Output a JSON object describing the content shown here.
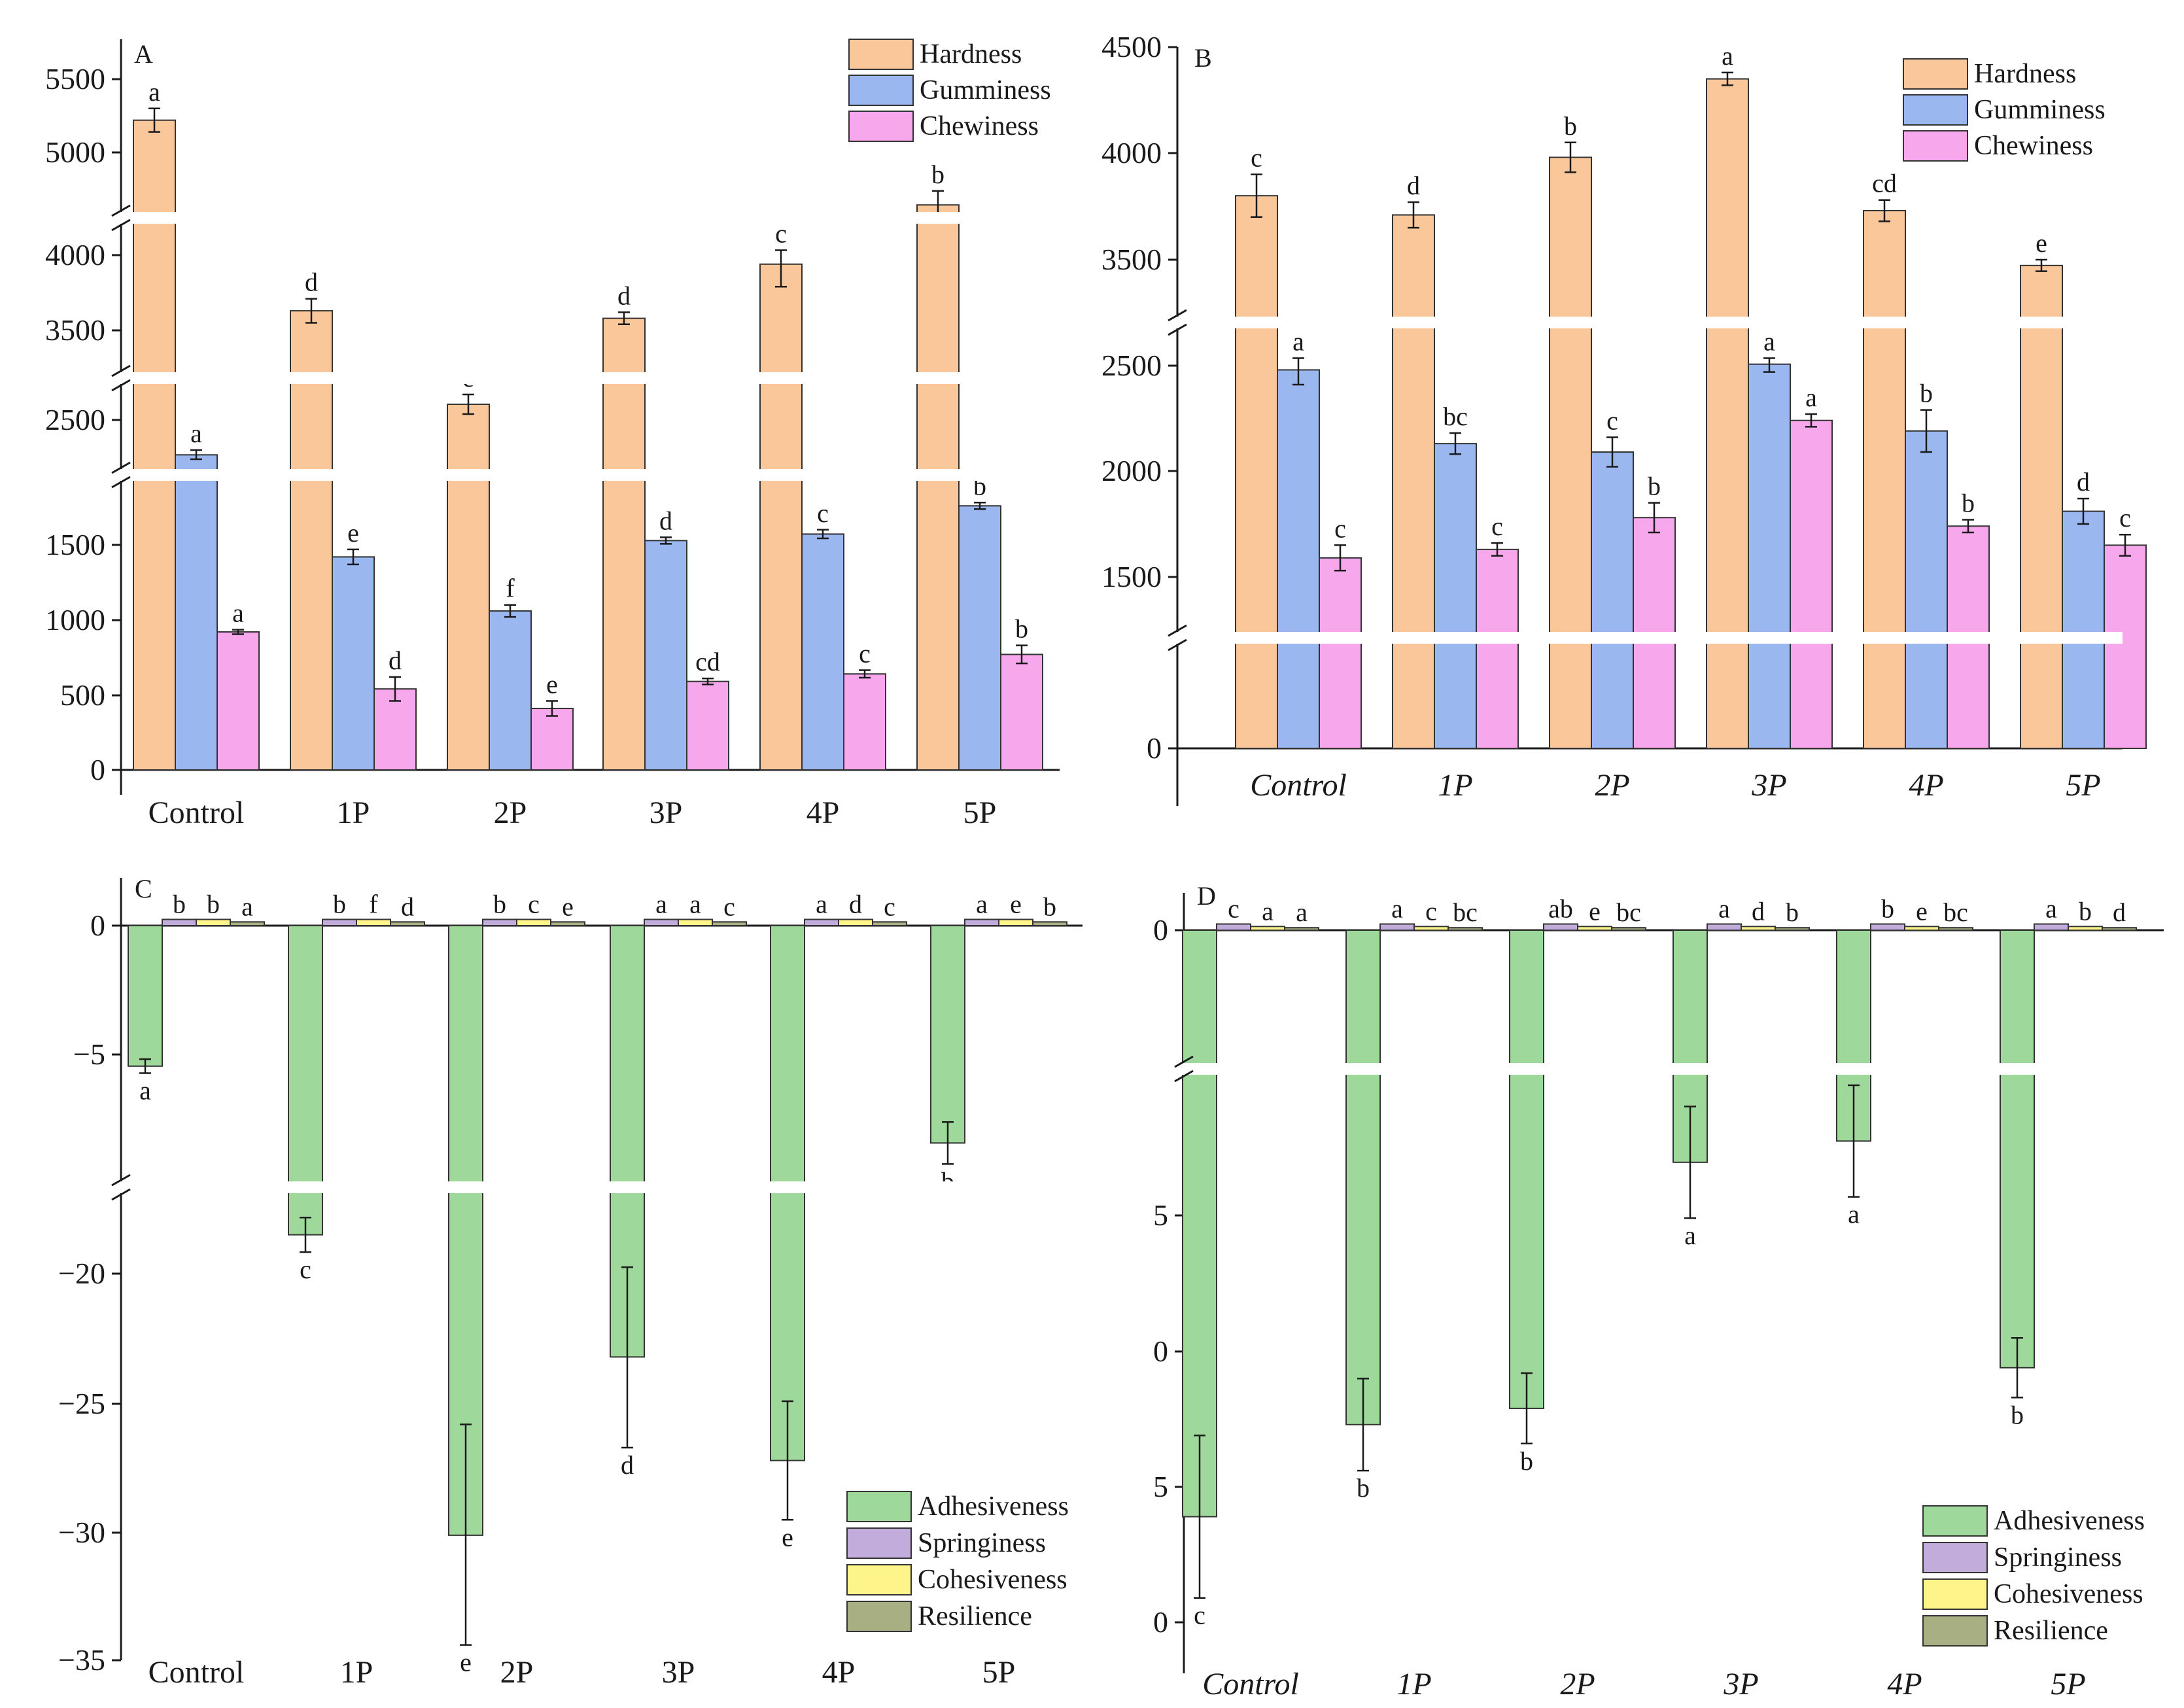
{
  "chart_data": [
    {
      "panel": "A",
      "type": "bar",
      "categories": [
        "Control",
        "1P",
        "2P",
        "3P",
        "4P",
        "5P"
      ],
      "category_style": "normal",
      "y_ticks": [
        0,
        500,
        1000,
        1500,
        2500,
        3500,
        4000,
        5000,
        5500
      ],
      "series": [
        {
          "name": "Hardness",
          "color": "#f9c79a",
          "values": [
            5220,
            3630,
            2580,
            3580,
            3940,
            4700
          ],
          "errors": [
            80,
            80,
            50,
            40,
            150,
            80
          ],
          "letters": [
            "a",
            "d",
            "e",
            "d",
            "c",
            "b"
          ]
        },
        {
          "name": "Gumminess",
          "color": "#9bb7f0",
          "values": [
            2330,
            1420,
            1060,
            1540,
            1600,
            1860
          ],
          "errors": [
            40,
            50,
            40,
            30,
            40,
            30
          ],
          "letters": [
            "a",
            "e",
            "f",
            "d",
            "c",
            "b"
          ]
        },
        {
          "name": "Chewiness",
          "color": "#f7a8ec",
          "values": [
            920,
            540,
            410,
            590,
            640,
            770
          ],
          "errors": [
            15,
            80,
            50,
            20,
            25,
            60
          ],
          "letters": [
            "a",
            "d",
            "e",
            "cd",
            "c",
            "b"
          ]
        }
      ]
    },
    {
      "panel": "B",
      "type": "bar",
      "categories": [
        "Control",
        "1P",
        "2P",
        "3P",
        "4P",
        "5P"
      ],
      "category_style": "italic",
      "y_ticks": [
        0,
        1500,
        2000,
        2500,
        3500,
        4000,
        4500
      ],
      "series": [
        {
          "name": "Hardness",
          "color": "#f9c79a",
          "values": [
            3800,
            3710,
            3980,
            4350,
            3730,
            3450
          ],
          "errors": [
            100,
            60,
            70,
            30,
            50,
            50
          ],
          "letters": [
            "c",
            "d",
            "b",
            "a",
            "cd",
            "e"
          ]
        },
        {
          "name": "Gumminess",
          "color": "#9bb7f0",
          "values": [
            2480,
            2130,
            2090,
            2510,
            2190,
            1810
          ],
          "errors": [
            70,
            50,
            70,
            40,
            100,
            60
          ],
          "letters": [
            "a",
            "bc",
            "c",
            "a",
            "b",
            "d"
          ]
        },
        {
          "name": "Chewiness",
          "color": "#f7a8ec",
          "values": [
            1590,
            1630,
            1780,
            2240,
            1740,
            1650
          ],
          "errors": [
            60,
            30,
            70,
            30,
            30,
            50
          ],
          "letters": [
            "c",
            "c",
            "b",
            "a",
            "b",
            "c"
          ]
        }
      ]
    },
    {
      "panel": "C",
      "type": "bar",
      "categories": [
        "Control",
        "1P",
        "2P",
        "3P",
        "4P",
        "5P"
      ],
      "category_style": "normal",
      "y_ticks": [
        0,
        -5,
        -20,
        -25,
        -30,
        -35
      ],
      "series": [
        {
          "name": "Adhesiveness",
          "color": "#9ed99b",
          "values": [
            -5.5,
            -18.2,
            -30.1,
            -23.2,
            -27.2,
            -8.8
          ],
          "errors": [
            0.3,
            0.8,
            4.3,
            3.5,
            2.3,
            0.9
          ],
          "letters": [
            "a",
            "c",
            "e",
            "d",
            "e",
            "b"
          ]
        },
        {
          "name": "Springiness",
          "color": "#c2acdc",
          "values": [
            0.5,
            0.5,
            0.5,
            0.5,
            0.5,
            0.5
          ],
          "letters": [
            "b",
            "b",
            "b",
            "a",
            "a",
            "a"
          ]
        },
        {
          "name": "Cohesiveness",
          "color": "#fdf58a",
          "values": [
            0.5,
            0.5,
            0.5,
            0.5,
            0.5,
            0.5
          ],
          "letters": [
            "b",
            "f",
            "c",
            "a",
            "d",
            "e"
          ]
        },
        {
          "name": "Resilience",
          "color": "#a8b083",
          "values": [
            0.3,
            0.3,
            0.3,
            0.3,
            0.3,
            0.3
          ],
          "letters": [
            "a",
            "d",
            "e",
            "c",
            "c",
            "b"
          ]
        }
      ]
    },
    {
      "panel": "D",
      "type": "bar",
      "categories": [
        "Control",
        "1P",
        "2P",
        "3P",
        "4P",
        "5P"
      ],
      "category_style": "italic",
      "y_ticks": [
        "0",
        "5",
        "0",
        "5",
        "0"
      ],
      "series": [
        {
          "name": "Adhesiveness",
          "color": "#9ed99b",
          "values": [
            -46.1,
            -42.7,
            -42.1,
            -33.0,
            -32.2,
            -40.6
          ],
          "errors": [
            3.0,
            1.7,
            1.3,
            2.1,
            2.1,
            1.1
          ],
          "letters": [
            "c",
            "b",
            "b",
            "a",
            "a",
            "b"
          ]
        },
        {
          "name": "Springiness",
          "color": "#c2acdc",
          "values": [
            0.5,
            0.5,
            0.5,
            0.5,
            0.5,
            0.5
          ],
          "letters": [
            "c",
            "a",
            "ab",
            "a",
            "b",
            "a"
          ]
        },
        {
          "name": "Cohesiveness",
          "color": "#fdf58a",
          "values": [
            0.3,
            0.3,
            0.3,
            0.3,
            0.3,
            0.3
          ],
          "letters": [
            "a",
            "c",
            "e",
            "d",
            "e",
            "b"
          ]
        },
        {
          "name": "Resilience",
          "color": "#a8b083",
          "values": [
            0.2,
            0.2,
            0.2,
            0.2,
            0.2,
            0.2
          ],
          "letters": [
            "a",
            "bc",
            "bc",
            "b",
            "bc",
            "d"
          ]
        }
      ]
    }
  ]
}
